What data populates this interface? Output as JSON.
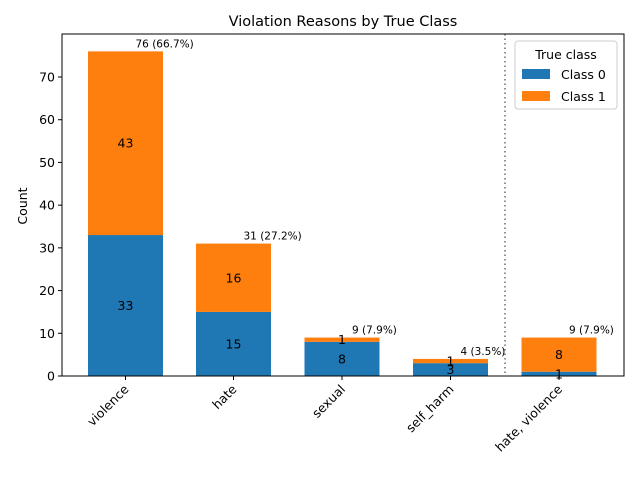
{
  "chart_data": {
    "type": "bar",
    "stacked": true,
    "title": "Violation Reasons by True Class",
    "xlabel": "",
    "ylabel": "Count",
    "categories": [
      "violence",
      "hate",
      "sexual",
      "self_harm",
      "hate, violence"
    ],
    "series": [
      {
        "name": "Class 0",
        "values": [
          33,
          15,
          8,
          3,
          1
        ],
        "color": "#1f77b4"
      },
      {
        "name": "Class 1",
        "values": [
          43,
          16,
          1,
          1,
          8
        ],
        "color": "#ff7f0e"
      }
    ],
    "total_labels": [
      "76 (66.7%)",
      "31 (27.2%)",
      "9 (7.9%)",
      "4 (3.5%)",
      "9 (7.9%)"
    ],
    "ylim": [
      0,
      80
    ],
    "yticks": [
      0,
      10,
      20,
      30,
      40,
      50,
      60,
      70
    ],
    "separator_after_category": "self_harm",
    "legend": {
      "title": "True class",
      "position": "top-right"
    },
    "grid": false
  }
}
